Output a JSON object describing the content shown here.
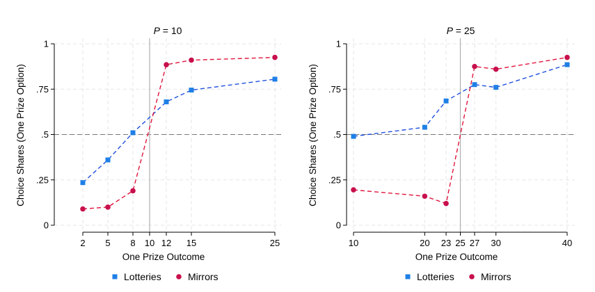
{
  "chart_data": [
    {
      "type": "line",
      "title_italic": "P",
      "title_rest": " = 10",
      "xlabel": "One Prize Outcome",
      "ylabel": "Choice Shares (One Prize Option)",
      "ylim": [
        0,
        1
      ],
      "yticks": [
        0,
        0.25,
        0.5,
        0.75,
        1
      ],
      "ytick_labels": [
        "0",
        ".25",
        ".5",
        ".75",
        "1"
      ],
      "xlim": [
        0,
        25
      ],
      "xticks": [
        2,
        5,
        8,
        10,
        12,
        15,
        25
      ],
      "xtick_labels": [
        "2",
        "5",
        "8",
        "10",
        "12",
        "15",
        "25"
      ],
      "reference_vline": 10,
      "reference_hline": 0.5,
      "grid": true,
      "legend_position": "bottom",
      "series": [
        {
          "name": "Lotteries",
          "color": "#1f4fe0",
          "marker_color": "#1e7fe6",
          "marker": "square",
          "x": [
            2,
            5,
            8,
            12,
            15,
            25
          ],
          "values": [
            0.235,
            0.36,
            0.51,
            0.68,
            0.745,
            0.805
          ]
        },
        {
          "name": "Mirrors",
          "color": "#e0143c",
          "marker_color": "#c8104c",
          "marker": "circle",
          "x": [
            2,
            5,
            8,
            12,
            15,
            25
          ],
          "values": [
            0.09,
            0.1,
            0.19,
            0.885,
            0.91,
            0.925
          ]
        }
      ]
    },
    {
      "type": "line",
      "title_italic": "P",
      "title_rest": " = 25",
      "xlabel": "One Prize Outcome",
      "ylabel": "Choice Shares (One Prize Option)",
      "ylim": [
        0,
        1
      ],
      "yticks": [
        0,
        0.25,
        0.5,
        0.75,
        1
      ],
      "ytick_labels": [
        "0",
        ".25",
        ".5",
        ".75",
        "1"
      ],
      "xlim": [
        10,
        40
      ],
      "xticks": [
        10,
        20,
        23,
        25,
        27,
        30,
        40
      ],
      "xtick_labels": [
        "10",
        "20",
        "23",
        "25",
        "27",
        "30",
        "40"
      ],
      "reference_vline": 25,
      "reference_hline": 0.5,
      "grid": true,
      "legend_position": "bottom",
      "series": [
        {
          "name": "Lotteries",
          "color": "#1f4fe0",
          "marker_color": "#1e7fe6",
          "marker": "square",
          "x": [
            10,
            20,
            23,
            27,
            30,
            40
          ],
          "values": [
            0.49,
            0.54,
            0.685,
            0.775,
            0.76,
            0.885
          ]
        },
        {
          "name": "Mirrors",
          "color": "#e0143c",
          "marker_color": "#c8104c",
          "marker": "circle",
          "x": [
            10,
            20,
            23,
            27,
            30,
            40
          ],
          "values": [
            0.195,
            0.16,
            0.12,
            0.875,
            0.86,
            0.925
          ]
        }
      ]
    }
  ]
}
